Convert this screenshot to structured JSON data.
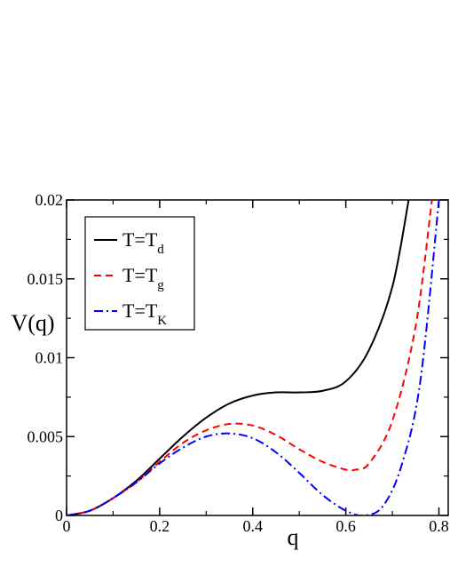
{
  "chart_data": {
    "type": "line",
    "title": "",
    "xlabel": "q",
    "ylabel": "V(q)",
    "xlim": [
      0,
      0.82
    ],
    "ylim": [
      0,
      0.02
    ],
    "xticks": [
      0,
      0.2,
      0.4,
      0.6,
      0.8
    ],
    "xtick_labels": [
      "0",
      "0.2",
      "0.4",
      "0.6",
      "0.8"
    ],
    "yticks": [
      0,
      0.005,
      0.01,
      0.015,
      0.02
    ],
    "ytick_labels": [
      "0",
      "0.005",
      "0.01",
      "0.015",
      "0.02"
    ],
    "grid": false,
    "legend_position": "top-left",
    "series": [
      {
        "name": "T=Td",
        "legend_main": "T=T",
        "legend_sub": "d",
        "color": "#000000",
        "dash": "solid",
        "points": [
          [
            0,
            0
          ],
          [
            0.05,
            0.0003
          ],
          [
            0.1,
            0.0011
          ],
          [
            0.15,
            0.0022
          ],
          [
            0.2,
            0.0036
          ],
          [
            0.25,
            0.005
          ],
          [
            0.3,
            0.0062
          ],
          [
            0.35,
            0.0071
          ],
          [
            0.4,
            0.0076
          ],
          [
            0.45,
            0.0078
          ],
          [
            0.5,
            0.0078
          ],
          [
            0.55,
            0.0079
          ],
          [
            0.6,
            0.0085
          ],
          [
            0.65,
            0.0105
          ],
          [
            0.7,
            0.0145
          ],
          [
            0.735,
            0.02
          ]
        ]
      },
      {
        "name": "T=Tg",
        "legend_main": "T=T",
        "legend_sub": "g",
        "color": "#ff0000",
        "dash": "dashed",
        "points": [
          [
            0,
            0
          ],
          [
            0.05,
            0.0003
          ],
          [
            0.1,
            0.0011
          ],
          [
            0.15,
            0.0021
          ],
          [
            0.2,
            0.0034
          ],
          [
            0.25,
            0.0046
          ],
          [
            0.3,
            0.0054
          ],
          [
            0.35,
            0.0058
          ],
          [
            0.4,
            0.0057
          ],
          [
            0.45,
            0.0051
          ],
          [
            0.5,
            0.0042
          ],
          [
            0.55,
            0.0034
          ],
          [
            0.6,
            0.0029
          ],
          [
            0.62,
            0.0029
          ],
          [
            0.65,
            0.0033
          ],
          [
            0.7,
            0.006
          ],
          [
            0.75,
            0.012
          ],
          [
            0.785,
            0.02
          ]
        ]
      },
      {
        "name": "T=TK",
        "legend_main": "T=T",
        "legend_sub": "K",
        "color": "#0000ff",
        "dash": "dashdot",
        "points": [
          [
            0,
            0
          ],
          [
            0.05,
            0.0003
          ],
          [
            0.1,
            0.0011
          ],
          [
            0.15,
            0.0021
          ],
          [
            0.2,
            0.0033
          ],
          [
            0.25,
            0.0043
          ],
          [
            0.3,
            0.005
          ],
          [
            0.35,
            0.0052
          ],
          [
            0.4,
            0.0049
          ],
          [
            0.45,
            0.004
          ],
          [
            0.5,
            0.0027
          ],
          [
            0.55,
            0.0013
          ],
          [
            0.6,
            0.0003
          ],
          [
            0.64,
            0
          ],
          [
            0.68,
            0.0006
          ],
          [
            0.72,
            0.0032
          ],
          [
            0.76,
            0.0085
          ],
          [
            0.8,
            0.02
          ]
        ]
      }
    ]
  }
}
